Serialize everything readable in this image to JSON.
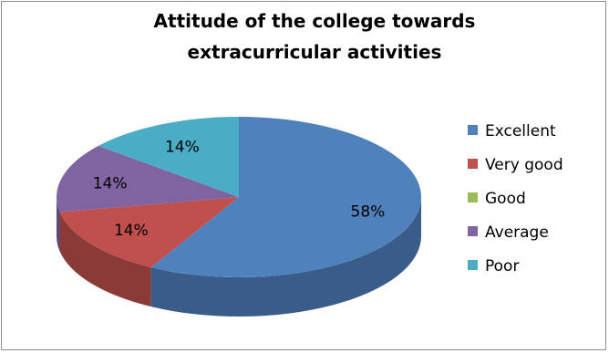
{
  "chart_data": {
    "type": "pie",
    "title_lines": [
      "Attitude of the college towards",
      "extracurricular activities"
    ],
    "categories": [
      "Excellent",
      "Very good",
      "Good",
      "Average",
      "Poor"
    ],
    "values": [
      58,
      14,
      0,
      14,
      14
    ],
    "value_labels": [
      "58%",
      "14%",
      "",
      "14%",
      "14%"
    ],
    "colors": [
      "#4F81BD",
      "#C0504D",
      "#9BBB59",
      "#8064A2",
      "#4BACC6"
    ],
    "style": "3d",
    "legend_position": "right"
  }
}
